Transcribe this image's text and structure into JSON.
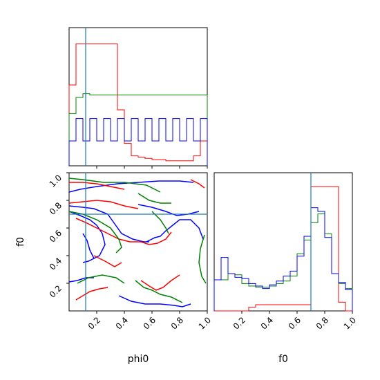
{
  "chart_data": {
    "type": "corner",
    "parameters": [
      "phi0",
      "f0"
    ],
    "truths": {
      "phi0": 0.12,
      "f0": 0.7
    },
    "truth_color": "#1f77b4",
    "colors": {
      "red": "#ff0000",
      "green": "#008000",
      "blue": "#0000ff"
    },
    "ticks": {
      "phi0": [
        "0.2",
        "0.4",
        "0.6",
        "0.8",
        "1.0"
      ],
      "f0_y": [
        "0.2",
        "0.4",
        "0.6",
        "0.8",
        "1.0"
      ],
      "f0_x": [
        "0.2",
        "0.4",
        "0.6",
        "0.8",
        "1.0"
      ]
    },
    "hist_phi0": {
      "bin_edges": [
        0.0,
        0.05,
        0.1,
        0.15,
        0.2,
        0.25,
        0.3,
        0.35,
        0.4,
        0.45,
        0.5,
        0.55,
        0.6,
        0.65,
        0.7,
        0.75,
        0.8,
        0.85,
        0.9,
        0.95,
        1.0
      ],
      "ymax": 1.0,
      "series": [
        {
          "color": "red",
          "values": [
            0.65,
            0.98,
            0.98,
            0.98,
            0.98,
            0.98,
            0.98,
            0.45,
            0.18,
            0.08,
            0.07,
            0.06,
            0.05,
            0.05,
            0.04,
            0.04,
            0.04,
            0.04,
            0.08,
            0.2
          ]
        },
        {
          "color": "green",
          "values": [
            0.42,
            0.55,
            0.58,
            0.57,
            0.57,
            0.57,
            0.57,
            0.57,
            0.57,
            0.57,
            0.57,
            0.57,
            0.57,
            0.57,
            0.57,
            0.57,
            0.57,
            0.57,
            0.57,
            0.57
          ]
        },
        {
          "color": "blue",
          "values": [
            0.2,
            0.38,
            0.2,
            0.38,
            0.2,
            0.38,
            0.2,
            0.38,
            0.2,
            0.38,
            0.2,
            0.38,
            0.2,
            0.38,
            0.2,
            0.38,
            0.2,
            0.38,
            0.2,
            0.38
          ]
        }
      ]
    },
    "hist_f0": {
      "bin_edges": [
        0.0,
        0.05,
        0.1,
        0.15,
        0.2,
        0.25,
        0.3,
        0.35,
        0.4,
        0.45,
        0.5,
        0.55,
        0.6,
        0.65,
        0.7,
        0.75,
        0.8,
        0.85,
        0.9,
        0.95,
        1.0
      ],
      "ymax": 1.0,
      "series": [
        {
          "color": "red",
          "values": [
            0.0,
            0.0,
            0.0,
            0.0,
            0.0,
            0.03,
            0.05,
            0.05,
            0.05,
            0.05,
            0.05,
            0.05,
            0.05,
            0.05,
            1.0,
            1.0,
            1.0,
            1.0,
            0.07,
            0.0
          ]
        },
        {
          "color": "green",
          "values": [
            0.25,
            0.25,
            0.3,
            0.29,
            0.22,
            0.2,
            0.19,
            0.19,
            0.2,
            0.22,
            0.24,
            0.28,
            0.46,
            0.57,
            0.71,
            0.78,
            0.62,
            0.3,
            0.22,
            0.18
          ]
        },
        {
          "color": "blue",
          "values": [
            0.25,
            0.43,
            0.3,
            0.27,
            0.26,
            0.22,
            0.2,
            0.18,
            0.21,
            0.24,
            0.28,
            0.32,
            0.44,
            0.6,
            0.83,
            0.8,
            0.59,
            0.3,
            0.23,
            0.17
          ]
        }
      ]
    },
    "contours": [
      {
        "color": "blue",
        "points": [
          [
            0.0,
            0.76
          ],
          [
            0.1,
            0.75
          ],
          [
            0.18,
            0.74
          ],
          [
            0.28,
            0.7
          ],
          [
            0.33,
            0.63
          ],
          [
            0.38,
            0.56
          ],
          [
            0.46,
            0.52
          ],
          [
            0.54,
            0.5
          ],
          [
            0.58,
            0.5
          ]
        ]
      },
      {
        "color": "blue",
        "points": [
          [
            0.0,
            0.72
          ],
          [
            0.08,
            0.69
          ],
          [
            0.15,
            0.66
          ],
          [
            0.2,
            0.62
          ],
          [
            0.24,
            0.56
          ],
          [
            0.26,
            0.48
          ],
          [
            0.22,
            0.4
          ],
          [
            0.14,
            0.36
          ],
          [
            0.1,
            0.35
          ]
        ]
      },
      {
        "color": "blue",
        "points": [
          [
            0.56,
            0.5
          ],
          [
            0.62,
            0.53
          ],
          [
            0.66,
            0.54
          ],
          [
            0.7,
            0.58
          ],
          [
            0.75,
            0.62
          ],
          [
            0.8,
            0.66
          ],
          [
            0.88,
            0.66
          ],
          [
            0.94,
            0.6
          ],
          [
            0.97,
            0.52
          ]
        ]
      },
      {
        "color": "blue",
        "points": [
          [
            0.0,
            0.86
          ],
          [
            0.08,
            0.88
          ],
          [
            0.2,
            0.9
          ],
          [
            0.35,
            0.92
          ],
          [
            0.5,
            0.93
          ],
          [
            0.65,
            0.94
          ],
          [
            0.8,
            0.94
          ],
          [
            0.9,
            0.93
          ]
        ]
      },
      {
        "color": "blue",
        "points": [
          [
            0.5,
            0.77
          ],
          [
            0.6,
            0.75
          ],
          [
            0.7,
            0.72
          ],
          [
            0.78,
            0.69
          ],
          [
            0.86,
            0.7
          ],
          [
            0.94,
            0.72
          ]
        ]
      },
      {
        "color": "blue",
        "points": [
          [
            0.36,
            0.11
          ],
          [
            0.45,
            0.07
          ],
          [
            0.55,
            0.05
          ],
          [
            0.66,
            0.05
          ],
          [
            0.76,
            0.04
          ],
          [
            0.82,
            0.03
          ],
          [
            0.88,
            0.05
          ]
        ]
      },
      {
        "color": "blue",
        "points": [
          [
            0.0,
            0.21
          ],
          [
            0.06,
            0.22
          ],
          [
            0.12,
            0.24
          ],
          [
            0.18,
            0.24
          ]
        ]
      },
      {
        "color": "blue",
        "points": [
          [
            0.1,
            0.56
          ],
          [
            0.13,
            0.51
          ],
          [
            0.15,
            0.44
          ],
          [
            0.18,
            0.38
          ]
        ]
      },
      {
        "color": "red",
        "points": [
          [
            0.0,
            0.93
          ],
          [
            0.1,
            0.93
          ],
          [
            0.2,
            0.92
          ],
          [
            0.3,
            0.9
          ],
          [
            0.4,
            0.88
          ]
        ]
      },
      {
        "color": "red",
        "points": [
          [
            0.0,
            0.78
          ],
          [
            0.1,
            0.79
          ],
          [
            0.2,
            0.8
          ],
          [
            0.3,
            0.79
          ],
          [
            0.4,
            0.76
          ],
          [
            0.5,
            0.74
          ]
        ]
      },
      {
        "color": "red",
        "points": [
          [
            0.05,
            0.67
          ],
          [
            0.12,
            0.64
          ],
          [
            0.2,
            0.6
          ],
          [
            0.28,
            0.56
          ],
          [
            0.36,
            0.52
          ],
          [
            0.44,
            0.5
          ],
          [
            0.52,
            0.5
          ],
          [
            0.58,
            0.48
          ],
          [
            0.64,
            0.49
          ],
          [
            0.7,
            0.52
          ],
          [
            0.74,
            0.57
          ]
        ]
      },
      {
        "color": "red",
        "points": [
          [
            0.18,
            0.4
          ],
          [
            0.26,
            0.36
          ],
          [
            0.33,
            0.32
          ],
          [
            0.38,
            0.35
          ]
        ]
      },
      {
        "color": "red",
        "points": [
          [
            0.52,
            0.22
          ],
          [
            0.58,
            0.18
          ],
          [
            0.63,
            0.15
          ],
          [
            0.68,
            0.17
          ],
          [
            0.74,
            0.22
          ],
          [
            0.8,
            0.26
          ]
        ]
      },
      {
        "color": "red",
        "points": [
          [
            0.05,
            0.08
          ],
          [
            0.1,
            0.11
          ],
          [
            0.15,
            0.14
          ],
          [
            0.22,
            0.16
          ],
          [
            0.28,
            0.17
          ]
        ]
      },
      {
        "color": "red",
        "points": [
          [
            0.88,
            0.95
          ],
          [
            0.94,
            0.92
          ],
          [
            0.98,
            0.89
          ]
        ]
      },
      {
        "color": "green",
        "points": [
          [
            0.0,
            0.96
          ],
          [
            0.1,
            0.95
          ],
          [
            0.25,
            0.93
          ],
          [
            0.4,
            0.93
          ],
          [
            0.56,
            0.91
          ],
          [
            0.66,
            0.86
          ]
        ]
      },
      {
        "color": "green",
        "points": [
          [
            0.5,
            0.85
          ],
          [
            0.58,
            0.8
          ],
          [
            0.66,
            0.78
          ],
          [
            0.74,
            0.78
          ]
        ]
      },
      {
        "color": "green",
        "points": [
          [
            0.0,
            0.72
          ],
          [
            0.1,
            0.7
          ],
          [
            0.2,
            0.66
          ],
          [
            0.3,
            0.6
          ],
          [
            0.36,
            0.52
          ],
          [
            0.38,
            0.46
          ],
          [
            0.34,
            0.42
          ]
        ]
      },
      {
        "color": "green",
        "points": [
          [
            0.6,
            0.72
          ],
          [
            0.66,
            0.66
          ],
          [
            0.7,
            0.6
          ],
          [
            0.72,
            0.56
          ]
        ]
      },
      {
        "color": "green",
        "points": [
          [
            0.98,
            0.55
          ],
          [
            0.95,
            0.45
          ],
          [
            0.94,
            0.35
          ],
          [
            0.96,
            0.25
          ],
          [
            0.99,
            0.2
          ]
        ]
      },
      {
        "color": "green",
        "points": [
          [
            0.06,
            0.2
          ],
          [
            0.14,
            0.24
          ],
          [
            0.24,
            0.26
          ],
          [
            0.34,
            0.24
          ],
          [
            0.4,
            0.2
          ]
        ]
      },
      {
        "color": "green",
        "points": [
          [
            0.48,
            0.22
          ],
          [
            0.54,
            0.17
          ],
          [
            0.6,
            0.15
          ],
          [
            0.66,
            0.12
          ],
          [
            0.74,
            0.1
          ],
          [
            0.82,
            0.06
          ]
        ]
      }
    ]
  },
  "axes": {
    "xlabel_phi0": "phi0",
    "xlabel_f0": "f0",
    "ylabel_f0": "f0"
  }
}
